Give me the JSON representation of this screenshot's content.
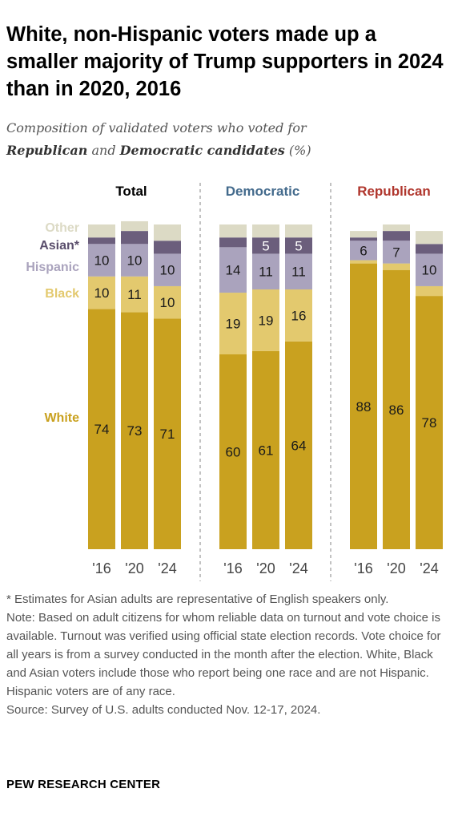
{
  "title": "White, non-Hispanic voters made up a smaller majority of Trump supporters in 2024 than in 2020, 2016",
  "subtitle": {
    "pre": "Composition of validated voters who voted for",
    "rep": "Republican",
    "and": "and",
    "dem": "Democratic candidates",
    "unit": "(%)"
  },
  "notes": [
    "* Estimates for Asian adults are representative of English speakers only.",
    "Note: Based on adult citizens for whom reliable data on turnout and vote choice is available. Turnout was verified using official state election records. Vote choice for all years is from a survey conducted in the month after the election. White, Black and Asian voters include those who report being one race and are not Hispanic. Hispanic voters are of any race.",
    "Source: Survey of U.S. adults conducted Nov. 12-17, 2024."
  ],
  "footer": "PEW RESEARCH CENTER",
  "chart_data": {
    "type": "bar",
    "stacked": true,
    "unit": "%",
    "categories": [
      "'16",
      "'20",
      "'24"
    ],
    "stack_order_bottom_to_top": [
      "White",
      "Black",
      "Hispanic",
      "Asian*",
      "Other"
    ],
    "colors": {
      "White": "#c9a11f",
      "Black": "#e3c96e",
      "Hispanic": "#aaa3bd",
      "Asian*": "#6b5e7c",
      "Other": "#dcdac5",
      "Total_title": "#000000",
      "Democratic_title": "#436a8c",
      "Republican_title": "#b0362d"
    },
    "legend": [
      {
        "name": "Other",
        "color": "#dcdac5"
      },
      {
        "name": "Asian*",
        "color": "#6b5e7c"
      },
      {
        "name": "Hispanic",
        "color": "#aaa3bd"
      },
      {
        "name": "Black",
        "color": "#e3c96e"
      },
      {
        "name": "White",
        "color": "#c9a11f"
      }
    ],
    "legend_placement": "left",
    "grid": false,
    "ylim": [
      0,
      100
    ],
    "panels": [
      {
        "title": "Total",
        "series": [
          {
            "name": "White",
            "values": [
              74,
              73,
              71
            ],
            "labels": [
              "74",
              "73",
              "71"
            ]
          },
          {
            "name": "Black",
            "values": [
              10,
              11,
              10
            ],
            "labels": [
              "10",
              "11",
              "10"
            ]
          },
          {
            "name": "Hispanic",
            "values": [
              10,
              10,
              10
            ],
            "labels": [
              "10",
              "10",
              "10"
            ]
          },
          {
            "name": "Asian*",
            "values": [
              2,
              4,
              4
            ],
            "labels": [
              "",
              "",
              ""
            ]
          },
          {
            "name": "Other",
            "values": [
              4,
              3,
              5
            ],
            "labels": [
              "",
              "",
              ""
            ]
          }
        ]
      },
      {
        "title": "Democratic",
        "series": [
          {
            "name": "White",
            "values": [
              60,
              61,
              64
            ],
            "labels": [
              "60",
              "61",
              "64"
            ]
          },
          {
            "name": "Black",
            "values": [
              19,
              19,
              16
            ],
            "labels": [
              "19",
              "19",
              "16"
            ]
          },
          {
            "name": "Hispanic",
            "values": [
              14,
              11,
              11
            ],
            "labels": [
              "14",
              "11",
              "11"
            ]
          },
          {
            "name": "Asian*",
            "values": [
              3,
              5,
              5
            ],
            "labels": [
              "",
              "5",
              "5"
            ]
          },
          {
            "name": "Other",
            "values": [
              4,
              4,
              4
            ],
            "labels": [
              "",
              "",
              ""
            ]
          }
        ]
      },
      {
        "title": "Republican",
        "series": [
          {
            "name": "White",
            "values": [
              88,
              86,
              78
            ],
            "labels": [
              "88",
              "86",
              "78"
            ]
          },
          {
            "name": "Black",
            "values": [
              1,
              2,
              3
            ],
            "labels": [
              "",
              "",
              ""
            ]
          },
          {
            "name": "Hispanic",
            "values": [
              6,
              7,
              10
            ],
            "labels": [
              "6",
              "7",
              "10"
            ]
          },
          {
            "name": "Asian*",
            "values": [
              1,
              3,
              3
            ],
            "labels": [
              "",
              "",
              ""
            ]
          },
          {
            "name": "Other",
            "values": [
              2,
              2,
              4
            ],
            "labels": [
              "",
              "",
              ""
            ]
          }
        ]
      }
    ]
  }
}
